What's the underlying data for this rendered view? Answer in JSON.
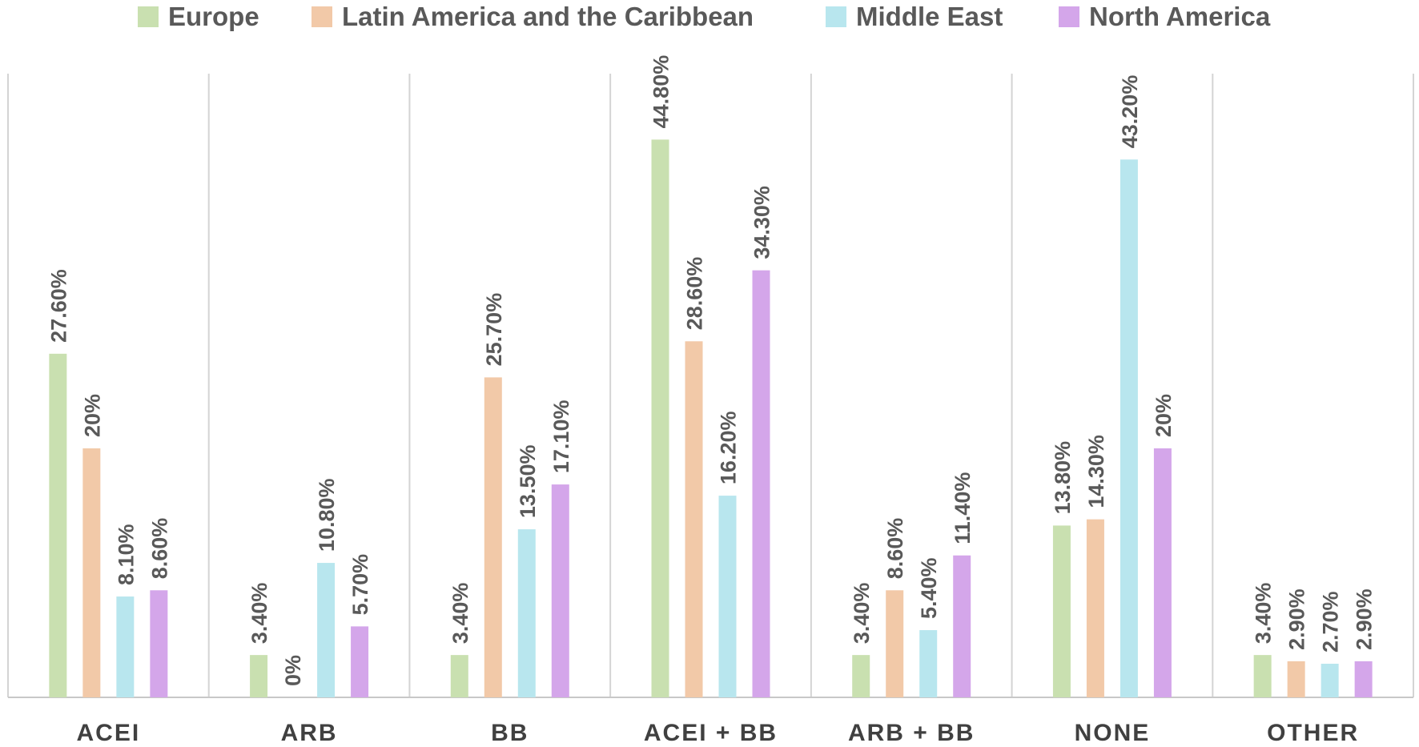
{
  "chart_data": {
    "type": "bar",
    "title": "",
    "xlabel": "",
    "ylabel": "",
    "ylim": [
      0,
      50
    ],
    "grid": false,
    "legend_position": "top",
    "categories": [
      "ACEI",
      "ARB",
      "BB",
      "ACEI + BB",
      "ARB + BB",
      "NONE",
      "OTHER"
    ],
    "series": [
      {
        "name": "Europe",
        "color": "#c9e0b0",
        "values": [
          27.6,
          3.4,
          3.4,
          44.8,
          3.4,
          13.8,
          3.4
        ],
        "labels": [
          "27.60%",
          "3.40%",
          "3.40%",
          "44.80%",
          "3.40%",
          "13.80%",
          "3.40%"
        ]
      },
      {
        "name": "Latin America and the Caribbean",
        "color": "#f2c9a8",
        "values": [
          20,
          0,
          25.7,
          28.6,
          8.6,
          14.3,
          2.9
        ],
        "labels": [
          "20%",
          "0%",
          "25.70%",
          "28.60%",
          "8.60%",
          "14.30%",
          "2.90%"
        ]
      },
      {
        "name": "Middle East",
        "color": "#b8e6ee",
        "values": [
          8.1,
          10.8,
          13.5,
          16.2,
          5.4,
          43.2,
          2.7
        ],
        "labels": [
          "8.10%",
          "10.80%",
          "13.50%",
          "16.20%",
          "5.40%",
          "43.20%",
          "2.70%"
        ]
      },
      {
        "name": "North America",
        "color": "#d4a6ea",
        "values": [
          8.6,
          5.7,
          17.1,
          34.3,
          11.4,
          20,
          2.9
        ],
        "labels": [
          "8.60%",
          "5.70%",
          "17.10%",
          "34.30%",
          "11.40%",
          "20%",
          "2.90%"
        ]
      }
    ]
  }
}
